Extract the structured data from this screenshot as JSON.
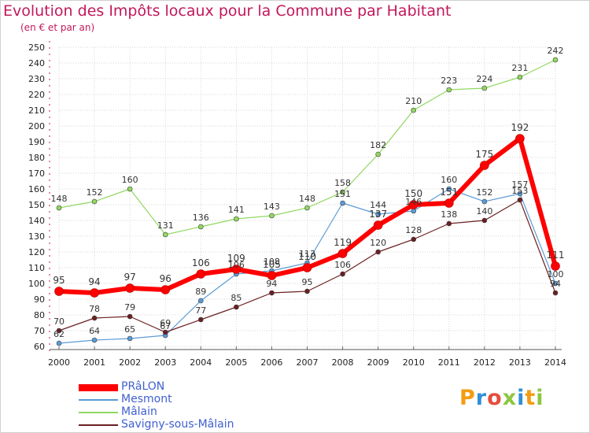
{
  "title": "Evolution des Impôts locaux pour la Commune par Habitant",
  "subtitle": "(en € et par an)",
  "logo": {
    "text": "Proxiti",
    "colors": [
      "#f39c12",
      "#2f8fd8",
      "#e74c3c",
      "#8cc63f",
      "#2f8fd8",
      "#f39c12",
      "#8cc63f"
    ]
  },
  "chart_data": {
    "type": "line",
    "x": [
      2000,
      2001,
      2002,
      2003,
      2004,
      2005,
      2006,
      2007,
      2008,
      2009,
      2010,
      2011,
      2012,
      2013,
      2014
    ],
    "ylim": [
      60,
      250
    ],
    "yticks": [
      60,
      70,
      80,
      90,
      100,
      110,
      120,
      130,
      140,
      150,
      160,
      170,
      180,
      190,
      200,
      210,
      220,
      230,
      240,
      250
    ],
    "grid": true,
    "series": [
      {
        "name": "Mesmont",
        "color": "#5b9bd5",
        "values": [
          62,
          64,
          65,
          67,
          89,
          106,
          108,
          113,
          151,
          144,
          146,
          160,
          152,
          157,
          100
        ]
      },
      {
        "name": "Mâlain",
        "color": "#90d860",
        "values": [
          148,
          152,
          160,
          131,
          136,
          141,
          143,
          148,
          158,
          182,
          210,
          223,
          224,
          231,
          242
        ]
      },
      {
        "name": "Savigny-sous-Mâlain",
        "color": "#6b1f22",
        "values": [
          70,
          78,
          79,
          69,
          77,
          85,
          94,
          95,
          106,
          120,
          128,
          138,
          140,
          153,
          94
        ]
      },
      {
        "name": "PRâLON",
        "color": "#ff0000",
        "values": [
          95,
          94,
          97,
          96,
          106,
          109,
          105,
          110,
          119,
          137,
          150,
          151,
          175,
          192,
          111
        ]
      }
    ]
  }
}
